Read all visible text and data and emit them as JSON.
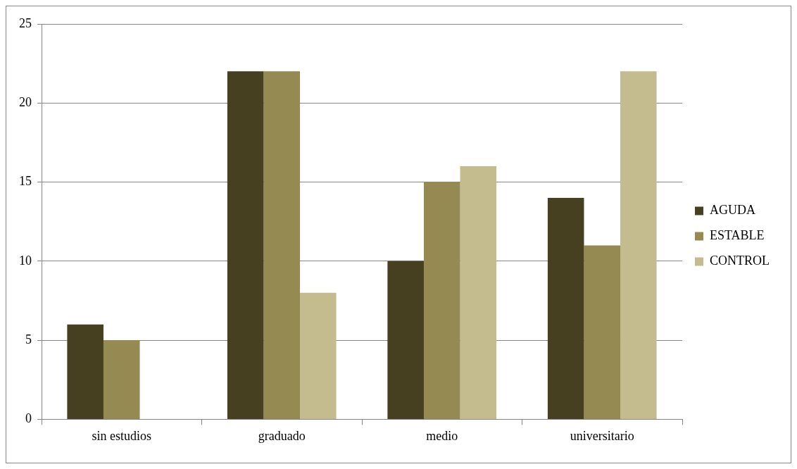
{
  "chart_data": {
    "type": "bar",
    "categories": [
      "sin estudios",
      "graduado",
      "medio",
      "universitario"
    ],
    "series": [
      {
        "name": "AGUDA",
        "color": "#464020",
        "values": [
          6,
          22,
          10,
          14
        ]
      },
      {
        "name": "ESTABLE",
        "color": "#958a52",
        "values": [
          5,
          22,
          15,
          11
        ]
      },
      {
        "name": "CONTROL",
        "color": "#c4bb8f",
        "values": [
          0,
          8,
          16,
          22
        ]
      }
    ],
    "ylim": [
      0,
      25
    ],
    "yticks": [
      0,
      5,
      10,
      15,
      20,
      25
    ],
    "grid": "y",
    "legend": "right"
  }
}
